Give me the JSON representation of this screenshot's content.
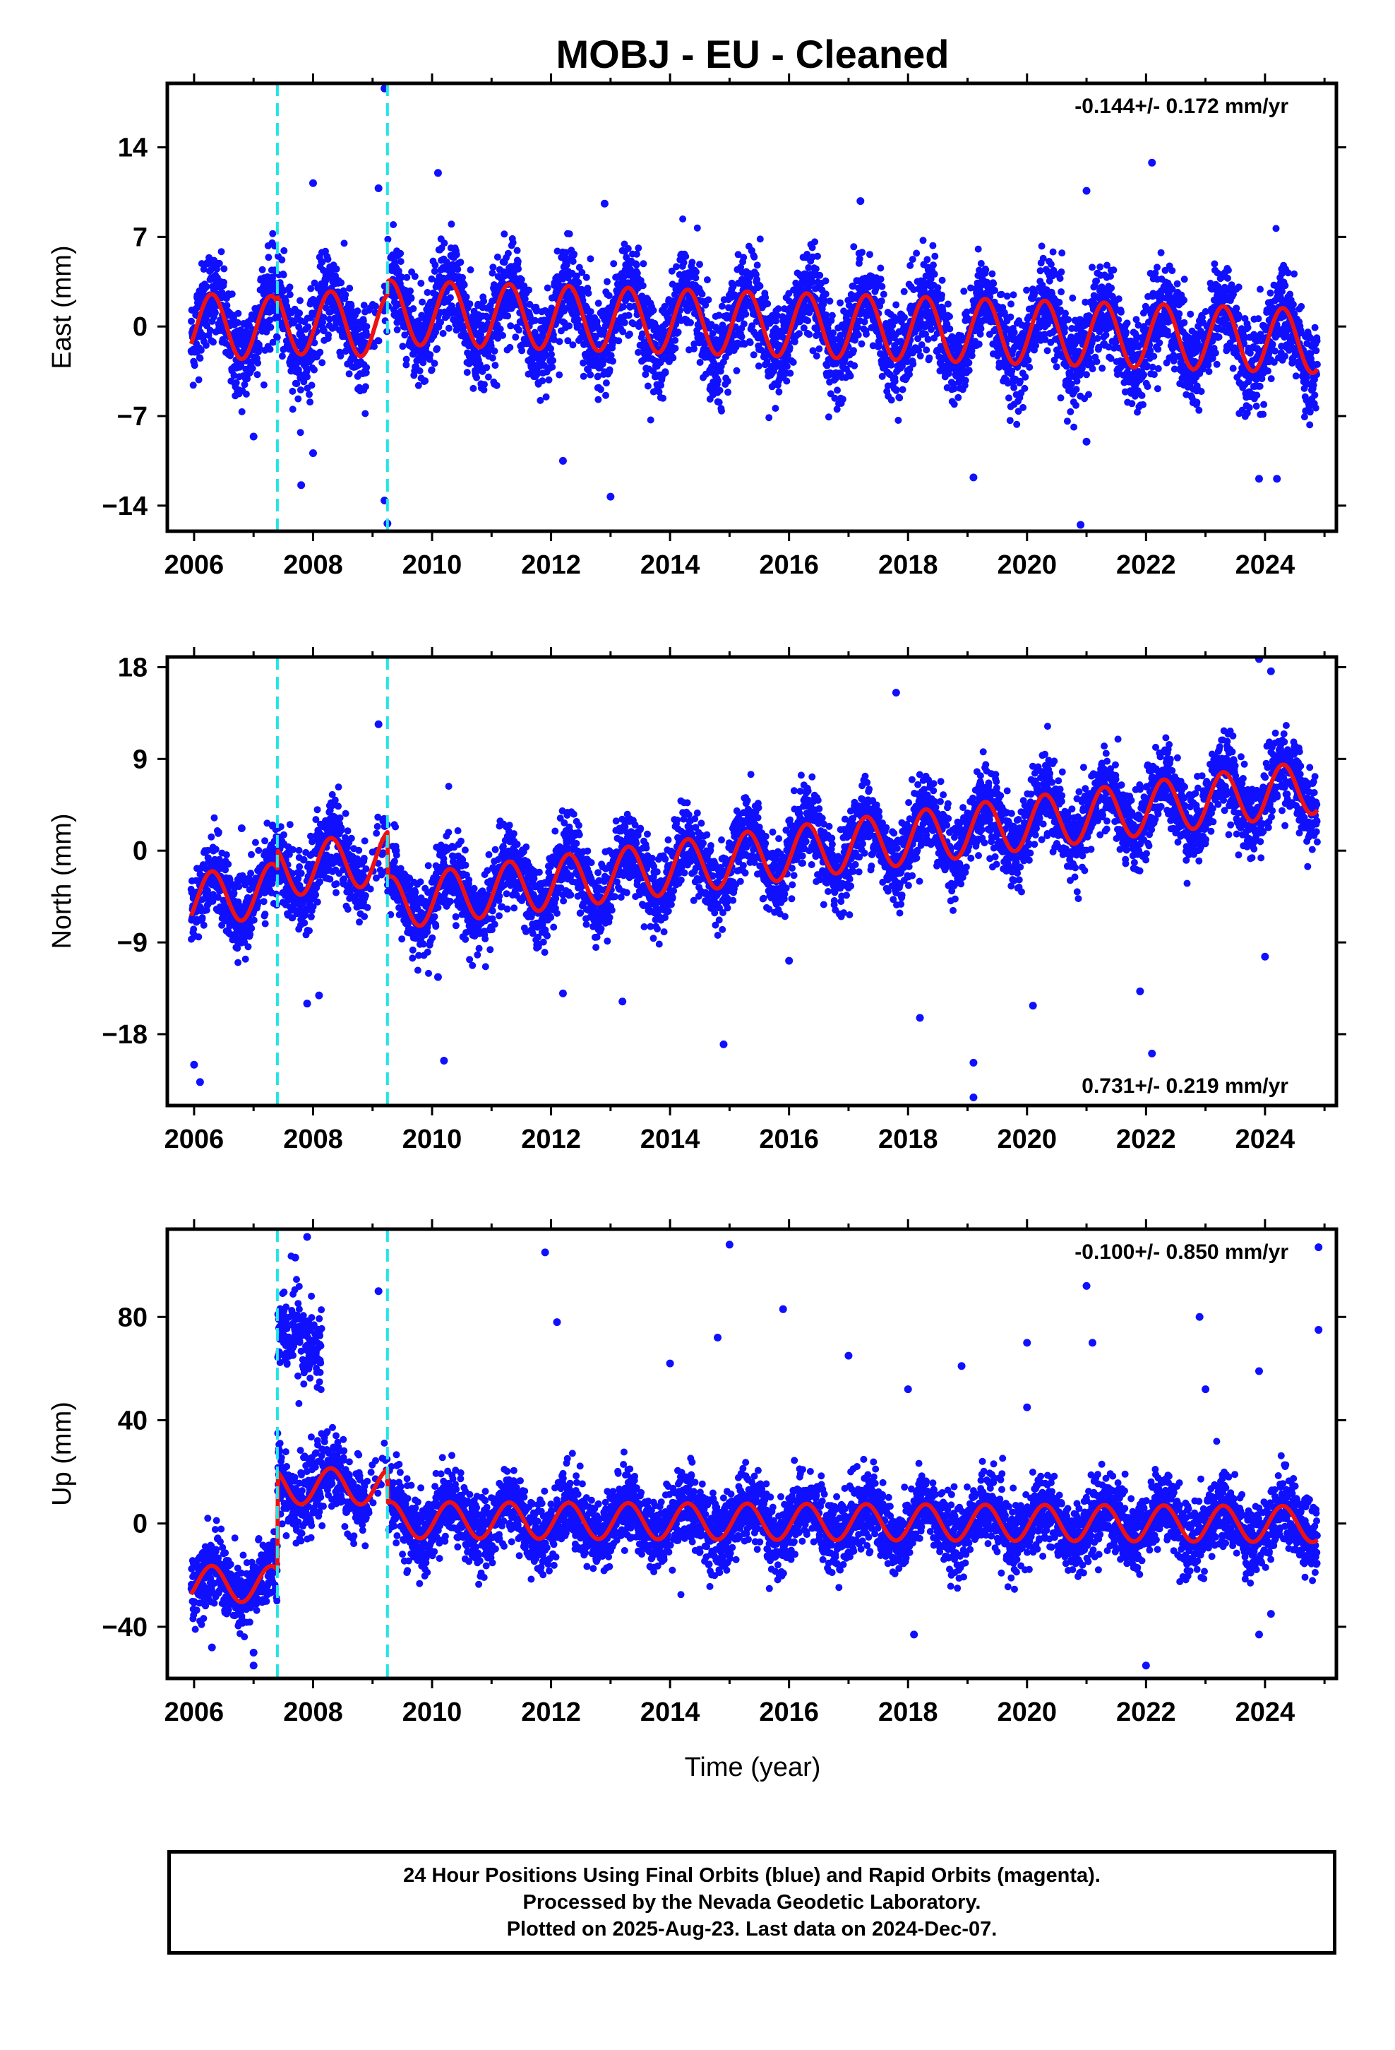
{
  "title": "MOBJ  - EU - Cleaned",
  "x_axis_label": "Time (year)",
  "footer": {
    "line1": "24 Hour Positions Using Final Orbits (blue) and Rapid Orbits (magenta).",
    "line2": "Processed by the Nevada Geodetic Laboratory.",
    "line3": "Plotted on 2025-Aug-23. Last data on 2024-Dec-07."
  },
  "colors": {
    "points": "#1010ff",
    "model": "#ee1111",
    "offset_lines": "#22e5e5",
    "frame": "#000000"
  },
  "chart_data": [
    {
      "type": "scatter",
      "id": "east",
      "ylabel": "East (mm)",
      "rate_text": "-0.144+/- 0.172 mm/yr",
      "rate_position": "top-right",
      "xlim": [
        2005.55,
        2025.2
      ],
      "ylim": [
        -16,
        19
      ],
      "xticks": [
        2006,
        2008,
        2010,
        2012,
        2014,
        2016,
        2018,
        2020,
        2022,
        2024
      ],
      "yticks": [
        -14,
        -7,
        0,
        7,
        14
      ],
      "offset_lines_year": [
        2007.4,
        2009.25
      ],
      "model": {
        "amplitude": 2.5,
        "trend_mm_per_yr": -0.144,
        "jumps": [
          {
            "year": 2007.4,
            "offset": 0.5
          },
          {
            "year": 2009.25,
            "offset": 1.0
          }
        ]
      },
      "scatter_noise_sd": 1.8,
      "outliers": [
        [
          2008.0,
          11.2
        ],
        [
          2009.1,
          10.8
        ],
        [
          2009.2,
          18.6
        ],
        [
          2010.1,
          12.0
        ],
        [
          2012.9,
          9.6
        ],
        [
          2017.2,
          9.8
        ],
        [
          2021.0,
          10.6
        ],
        [
          2022.1,
          12.8
        ],
        [
          2007.0,
          -8.6
        ],
        [
          2007.8,
          -12.4
        ],
        [
          2008.0,
          -9.9
        ],
        [
          2009.2,
          -13.6
        ],
        [
          2009.25,
          -15.4
        ],
        [
          2012.2,
          -10.5
        ],
        [
          2013.0,
          -13.3
        ],
        [
          2019.1,
          -11.8
        ],
        [
          2020.9,
          -15.5
        ],
        [
          2023.9,
          -11.9
        ],
        [
          2024.2,
          -11.9
        ],
        [
          2021.0,
          -9.0
        ]
      ]
    },
    {
      "type": "scatter",
      "id": "north",
      "ylabel": "North (mm)",
      "rate_text": "0.731+/- 0.219 mm/yr",
      "rate_position": "bottom-right",
      "xlim": [
        2005.55,
        2025.2
      ],
      "ylim": [
        -25,
        19
      ],
      "xticks": [
        2006,
        2008,
        2010,
        2012,
        2014,
        2016,
        2018,
        2020,
        2022,
        2024
      ],
      "yticks": [
        -18,
        -9,
        0,
        9,
        18
      ],
      "offset_lines_year": [
        2007.4,
        2009.25
      ],
      "model": {
        "amplitude": 2.6,
        "trend_mm_per_yr": 0.731,
        "jumps": [
          {
            "year": 2007.4,
            "offset": 1.8
          },
          {
            "year": 2009.25,
            "offset": -4.5
          }
        ]
      },
      "scatter_noise_sd": 1.9,
      "outliers": [
        [
          2006.0,
          -21.0
        ],
        [
          2006.1,
          -22.7
        ],
        [
          2006.8,
          2.2
        ],
        [
          2007.9,
          -15.0
        ],
        [
          2008.1,
          -14.2
        ],
        [
          2009.1,
          12.4
        ],
        [
          2010.1,
          -12.4
        ],
        [
          2010.2,
          -20.6
        ],
        [
          2012.2,
          -14.0
        ],
        [
          2013.2,
          -14.8
        ],
        [
          2014.9,
          -19.0
        ],
        [
          2016.0,
          -10.8
        ],
        [
          2017.8,
          15.5
        ],
        [
          2018.2,
          -16.4
        ],
        [
          2019.1,
          -20.8
        ],
        [
          2019.1,
          -24.2
        ],
        [
          2020.1,
          -15.2
        ],
        [
          2021.9,
          -13.8
        ],
        [
          2022.1,
          -19.9
        ],
        [
          2023.9,
          18.8
        ],
        [
          2024.0,
          -10.4
        ],
        [
          2024.1,
          17.6
        ]
      ]
    },
    {
      "type": "scatter",
      "id": "up",
      "ylabel": "Up (mm)",
      "rate_text": "-0.100+/- 0.850 mm/yr",
      "rate_position": "top-right",
      "xlim": [
        2005.55,
        2025.2
      ],
      "ylim": [
        -60,
        114
      ],
      "xticks": [
        2006,
        2008,
        2010,
        2012,
        2014,
        2016,
        2018,
        2020,
        2022,
        2024
      ],
      "yticks": [
        -40,
        0,
        40,
        80
      ],
      "offset_lines_year": [
        2007.4,
        2009.25
      ],
      "model": {
        "amplitude": 7.0,
        "trend_mm_per_yr": -0.1,
        "jumps": [
          {
            "year": 2007.4,
            "offset": 38.0
          },
          {
            "year": 2009.25,
            "offset": -13.0
          }
        ]
      },
      "scatter_noise_sd": 7.0,
      "outliers": [
        [
          2007.9,
          111.0
        ],
        [
          2007.7,
          103.0
        ],
        [
          2009.1,
          90.0
        ],
        [
          2011.9,
          105.0
        ],
        [
          2012.1,
          78.0
        ],
        [
          2014.0,
          62.0
        ],
        [
          2014.8,
          72.0
        ],
        [
          2015.0,
          108.0
        ],
        [
          2015.9,
          83.0
        ],
        [
          2017.0,
          65.0
        ],
        [
          2018.0,
          52.0
        ],
        [
          2018.9,
          61.0
        ],
        [
          2020.0,
          45.0
        ],
        [
          2020.0,
          70.0
        ],
        [
          2021.0,
          92.0
        ],
        [
          2021.1,
          70.0
        ],
        [
          2022.9,
          80.0
        ],
        [
          2023.0,
          52.0
        ],
        [
          2023.9,
          59.0
        ],
        [
          2024.9,
          107.0
        ],
        [
          2024.9,
          75.0
        ],
        [
          2006.3,
          -48.0
        ],
        [
          2007.0,
          -55.0
        ],
        [
          2007.0,
          -50.0
        ],
        [
          2018.1,
          -43.0
        ],
        [
          2022.0,
          -55.0
        ],
        [
          2023.9,
          -43.0
        ],
        [
          2024.1,
          -35.0
        ]
      ]
    }
  ]
}
